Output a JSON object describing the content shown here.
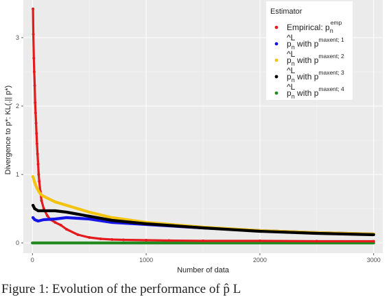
{
  "chart_data": {
    "type": "line",
    "xlabel": "Number of data",
    "ylabel": "Divergence to p*: KL(.|| p*)",
    "xlim": [
      -80,
      3080
    ],
    "ylim": [
      -0.15,
      3.55
    ],
    "x_ticks": [
      0,
      1000,
      2000,
      3000
    ],
    "y_ticks": [
      0,
      1,
      2,
      3
    ],
    "grid": true,
    "legend_position": "top-right",
    "legend_title": "Estimator",
    "series": [
      {
        "name": "Empirical: p_n^emp",
        "color": "#e41a1c",
        "x": [
          5,
          8,
          12,
          16,
          20,
          24,
          28,
          32,
          36,
          40,
          45,
          50,
          55,
          60,
          70,
          80,
          100,
          130,
          160,
          200,
          250,
          300,
          400,
          500,
          600,
          700,
          800,
          1000,
          1200,
          1500,
          2000,
          2500,
          3000
        ],
        "values": [
          3.42,
          3.05,
          2.7,
          2.5,
          2.3,
          2.05,
          1.9,
          1.75,
          1.6,
          1.45,
          1.3,
          1.15,
          1.0,
          0.9,
          0.75,
          0.62,
          0.5,
          0.4,
          0.34,
          0.3,
          0.26,
          0.2,
          0.12,
          0.08,
          0.06,
          0.05,
          0.045,
          0.04,
          0.035,
          0.03,
          0.03,
          0.025,
          0.025
        ]
      },
      {
        "name": "p_n^L with p^maxent; 1",
        "color": "#1515e8",
        "x": [
          5,
          20,
          50,
          100,
          200,
          300,
          400,
          500,
          700,
          1000,
          1500,
          2000,
          2500,
          3000
        ],
        "values": [
          0.37,
          0.34,
          0.32,
          0.34,
          0.35,
          0.37,
          0.36,
          0.35,
          0.3,
          0.27,
          0.22,
          0.18,
          0.15,
          0.13
        ]
      },
      {
        "name": "p_n^L with p^maxent; 2",
        "color": "#f2c40f",
        "x": [
          5,
          20,
          40,
          60,
          80,
          100,
          150,
          200,
          300,
          400,
          500,
          700,
          1000,
          1500,
          2000,
          2500,
          3000
        ],
        "values": [
          0.97,
          0.88,
          0.8,
          0.74,
          0.7,
          0.68,
          0.64,
          0.6,
          0.55,
          0.5,
          0.45,
          0.37,
          0.3,
          0.23,
          0.18,
          0.15,
          0.13
        ]
      },
      {
        "name": "p_n^L with p^maxent; 3",
        "color": "#000000",
        "x": [
          5,
          20,
          50,
          100,
          200,
          300,
          400,
          500,
          700,
          1000,
          1500,
          2000,
          2500,
          3000
        ],
        "values": [
          0.55,
          0.5,
          0.47,
          0.47,
          0.47,
          0.45,
          0.42,
          0.39,
          0.33,
          0.28,
          0.22,
          0.17,
          0.14,
          0.12
        ]
      },
      {
        "name": "p_n^L with p^maxent; 4",
        "color": "#228b22",
        "x": [
          0,
          3000
        ],
        "values": [
          0.0,
          0.0
        ]
      }
    ]
  },
  "legend": {
    "title": "Estimator",
    "items": [
      {
        "color": "#e41a1c",
        "text": "Empirical: p",
        "sub": "n",
        "sup": "emp"
      },
      {
        "color": "#1515e8",
        "hat": "^L",
        "text_base": "p",
        "sub": "n",
        "mid": " with p",
        "sup": "maxent; 1"
      },
      {
        "color": "#f2c40f",
        "hat": "^L",
        "text_base": "p",
        "sub": "n",
        "mid": " with p",
        "sup": "maxent; 2"
      },
      {
        "color": "#000000",
        "hat": "^L",
        "text_base": "p",
        "sub": "n",
        "mid": " with p",
        "sup": "maxent; 3"
      },
      {
        "color": "#228b22",
        "hat": "^L",
        "text_base": "p",
        "sub": "n",
        "mid": " with p",
        "sup": "maxent; 4"
      }
    ]
  },
  "caption": "Figure 1: Evolution of the performance of p̂ L"
}
